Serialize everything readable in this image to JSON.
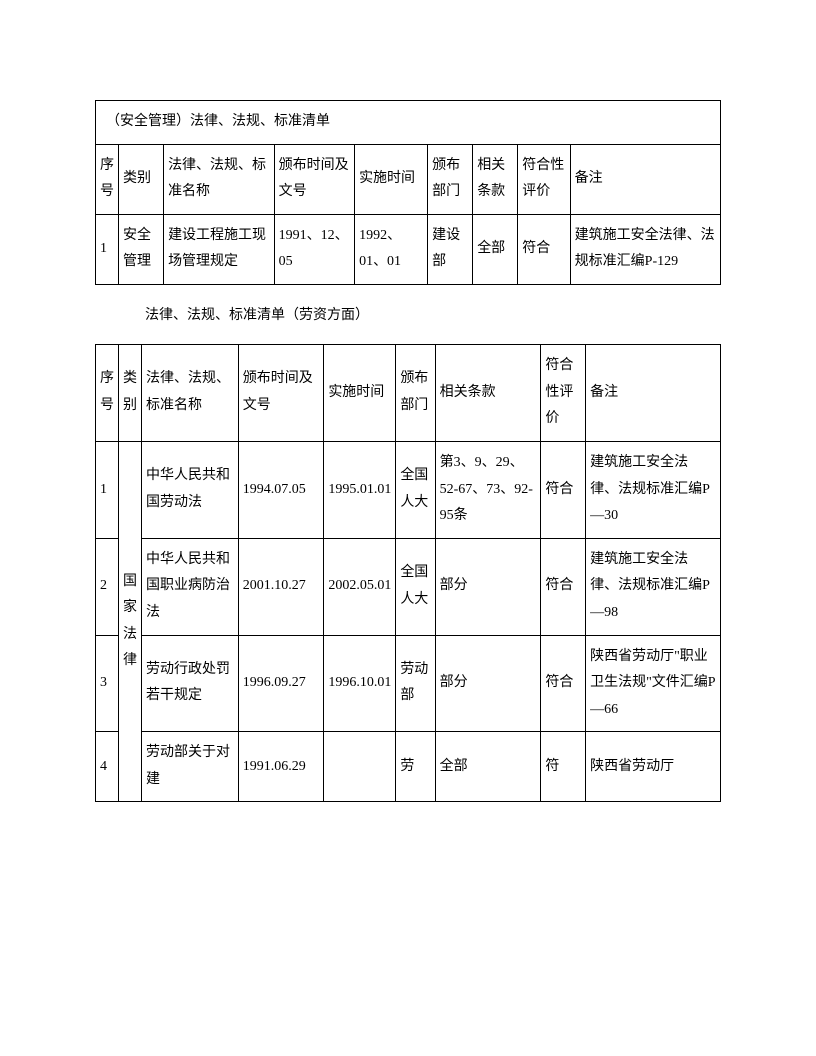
{
  "table1": {
    "title": "（安全管理）法律、法规、标准清单",
    "headers": [
      "序号",
      "类别",
      "法律、法规、标准名称",
      "颁布时间及文号",
      "实施时间",
      "颁布部门",
      "相关条款",
      "符合性评价",
      "备注"
    ],
    "rows": [
      {
        "num": "1",
        "category": "安全管理",
        "name": "建设工程施工现场管理规定",
        "issue_date": "1991、12、05",
        "impl_date": "1992、01、01",
        "dept": "建设部",
        "clause": "全部",
        "eval": "符合",
        "remark": "建筑施工安全法律、法规标准汇编P-129"
      }
    ]
  },
  "section2_title": "法律、法规、标准清单（劳资方面）",
  "table2": {
    "headers": [
      "序号",
      "类别",
      "法律、法规、标准名称",
      "颁布时间及文号",
      "实施时间",
      "颁布部门",
      "相关条款",
      "符合性评价",
      "备注"
    ],
    "category_merged": "国家法律",
    "rows": [
      {
        "num": "1",
        "name": "中华人民共和国劳动法",
        "issue_date": "1994.07.05",
        "impl_date": "1995.01.01",
        "dept": "全国人大",
        "clause": "第3、9、29、52-67、73、92-95条",
        "eval": "符合",
        "remark": "建筑施工安全法律、法规标准汇编P—30"
      },
      {
        "num": "2",
        "name": "中华人民共和国职业病防治法",
        "issue_date": "2001.10.27",
        "impl_date": "2002.05.01",
        "dept": "全国人大",
        "clause": "部分",
        "eval": "符合",
        "remark": "建筑施工安全法律、法规标准汇编P—98"
      },
      {
        "num": "3",
        "name": "劳动行政处罚若干规定",
        "issue_date": "1996.09.27",
        "impl_date": "1996.10.01",
        "dept": "劳动部",
        "clause": "部分",
        "eval": "符合",
        "remark": "陕西省劳动厅\"职业卫生法规\"文件汇编P—66"
      },
      {
        "num": "4",
        "name": "劳动部关于对建",
        "issue_date": "1991.06.29",
        "impl_date": "",
        "dept": "劳",
        "clause": "全部",
        "eval": "符",
        "remark": "陕西省劳动厅"
      }
    ]
  }
}
